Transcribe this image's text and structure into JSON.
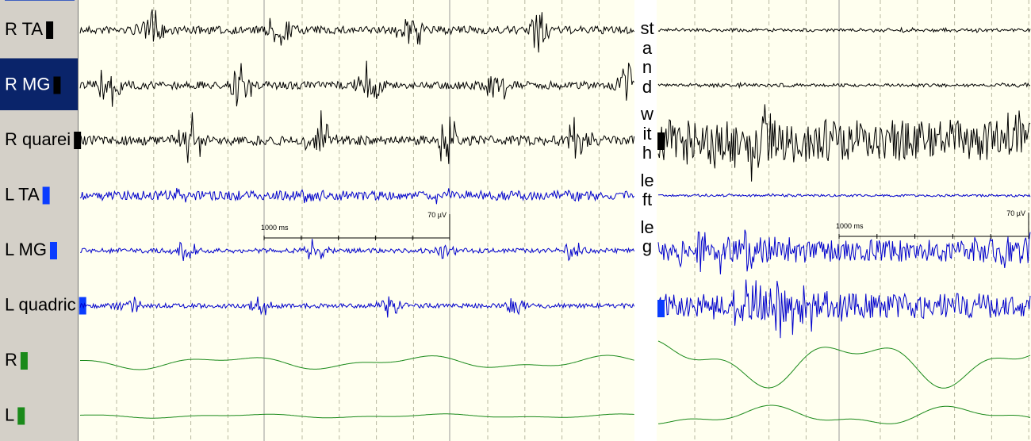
{
  "channels": [
    {
      "label": "R TA"
    },
    {
      "label": "R MG"
    },
    {
      "label": "R quarei"
    },
    {
      "label": "L TA"
    },
    {
      "label": "L MG"
    },
    {
      "label": "L quadric"
    },
    {
      "label": "R"
    },
    {
      "label": "L"
    }
  ],
  "scale_bars": [
    {
      "time": "1000 ms",
      "amplitude": "70 µV"
    },
    {
      "time": "1000 ms",
      "amplitude": "70 µV"
    }
  ],
  "annotation": [
    "stand",
    "with",
    "left",
    "leg"
  ]
}
